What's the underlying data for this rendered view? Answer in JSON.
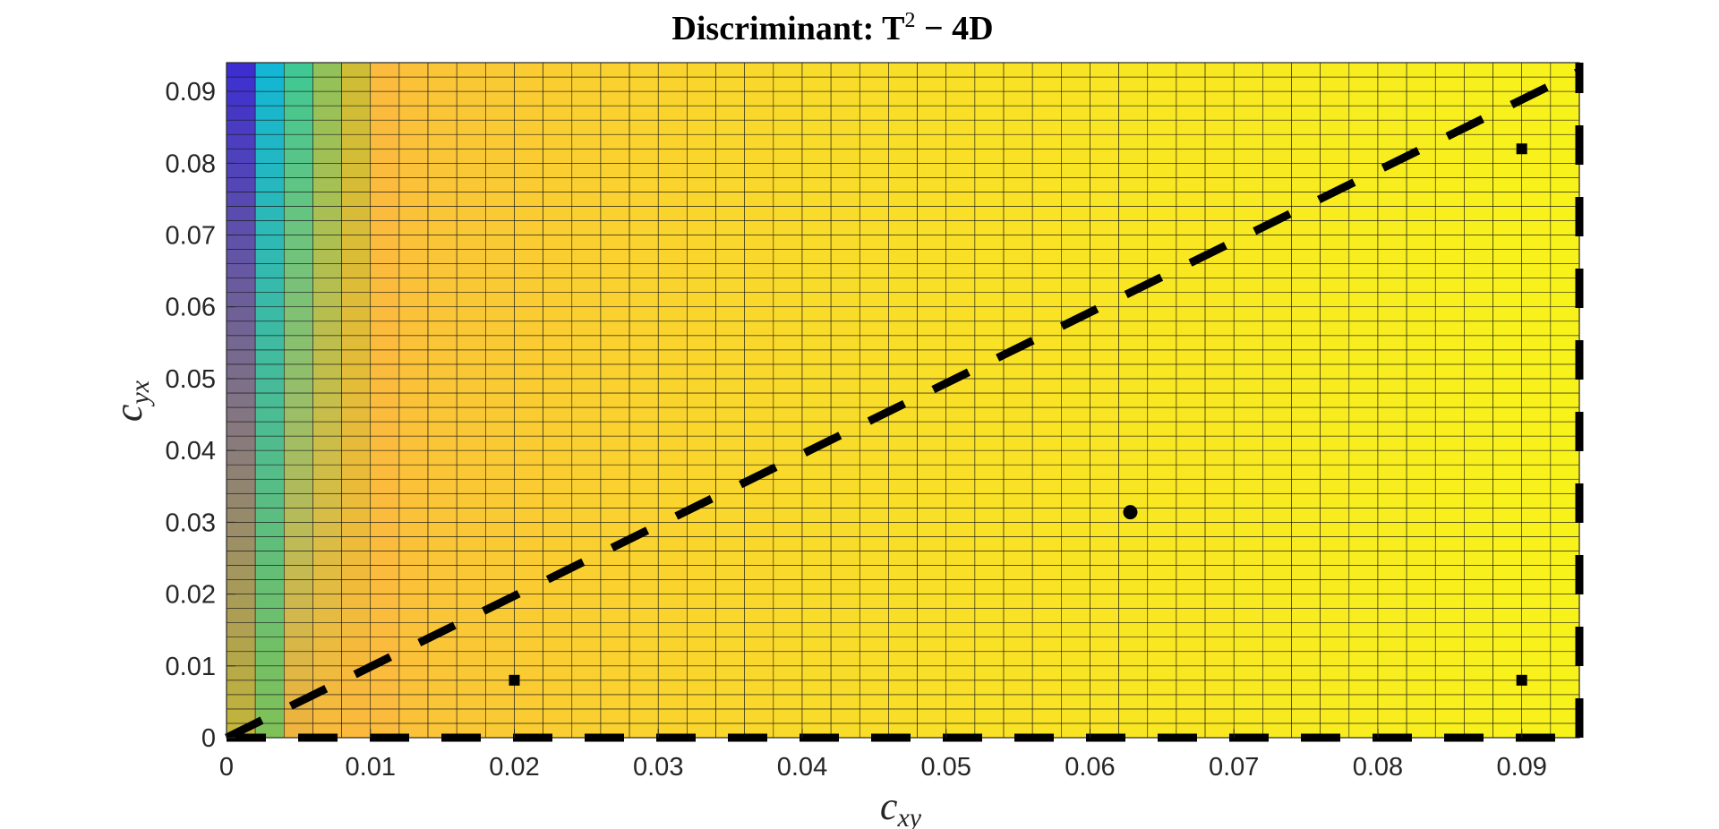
{
  "chart_data": {
    "type": "heatmap",
    "title": {
      "prefix": "Discriminant:  ",
      "base": "T",
      "superscript": "2",
      "suffix": " − 4D"
    },
    "xlabel": {
      "base": "c",
      "sub": "xy"
    },
    "ylabel": {
      "base": "c",
      "sub": "yx"
    },
    "xlim": [
      0,
      0.094
    ],
    "ylim": [
      0,
      0.094
    ],
    "xticks": [
      "0",
      "0.01",
      "0.02",
      "0.03",
      "0.04",
      "0.05",
      "0.06",
      "0.07",
      "0.08",
      "0.09"
    ],
    "yticks": [
      "0",
      "0.01",
      "0.02",
      "0.03",
      "0.04",
      "0.05",
      "0.06",
      "0.07",
      "0.08",
      "0.09"
    ],
    "grid": {
      "x_step": 0.002,
      "y_step": 0.002,
      "columns_from_left": [
        {
          "x_from": 0.0,
          "x_to": 0.002,
          "color_bottom": "#c3b63a",
          "color_top": "#3d2fcf"
        },
        {
          "x_from": 0.002,
          "x_to": 0.004,
          "color_bottom": "#7fc158",
          "color_top": "#13b6d4"
        },
        {
          "x_from": 0.004,
          "x_to": 0.006,
          "color_bottom": "#efb43d",
          "color_top": "#40c894"
        },
        {
          "x_from": 0.006,
          "x_to": 0.008,
          "color_bottom": "#f8ba3c",
          "color_top": "#93c159"
        },
        {
          "x_from": 0.008,
          "x_to": 0.01,
          "color_bottom": "#fbba3c",
          "color_top": "#cebd35"
        },
        {
          "x_from": 0.01,
          "x_to": 0.094,
          "color_start": "#fbbb3d",
          "color_end": "#f8f21b"
        }
      ],
      "colormap": "parula",
      "cell_edges": "#1a1a1a"
    },
    "series": [
      {
        "type": "dashed-line",
        "x": [
          0,
          0.094
        ],
        "y": [
          0,
          0.0928
        ],
        "color": "#000000"
      },
      {
        "type": "dashed-line",
        "x": [
          0,
          0.094
        ],
        "y": [
          0,
          0
        ],
        "color": "#000000"
      },
      {
        "type": "dashed-line",
        "x": [
          0.094,
          0.094
        ],
        "y": [
          0,
          0.094
        ],
        "color": "#000000"
      }
    ],
    "markers": [
      {
        "shape": "circle",
        "x": 0.0628,
        "y": 0.0314
      },
      {
        "shape": "square",
        "x": 0.02,
        "y": 0.008
      },
      {
        "shape": "square",
        "x": 0.09,
        "y": 0.008
      },
      {
        "shape": "square",
        "x": 0.09,
        "y": 0.082
      }
    ]
  }
}
